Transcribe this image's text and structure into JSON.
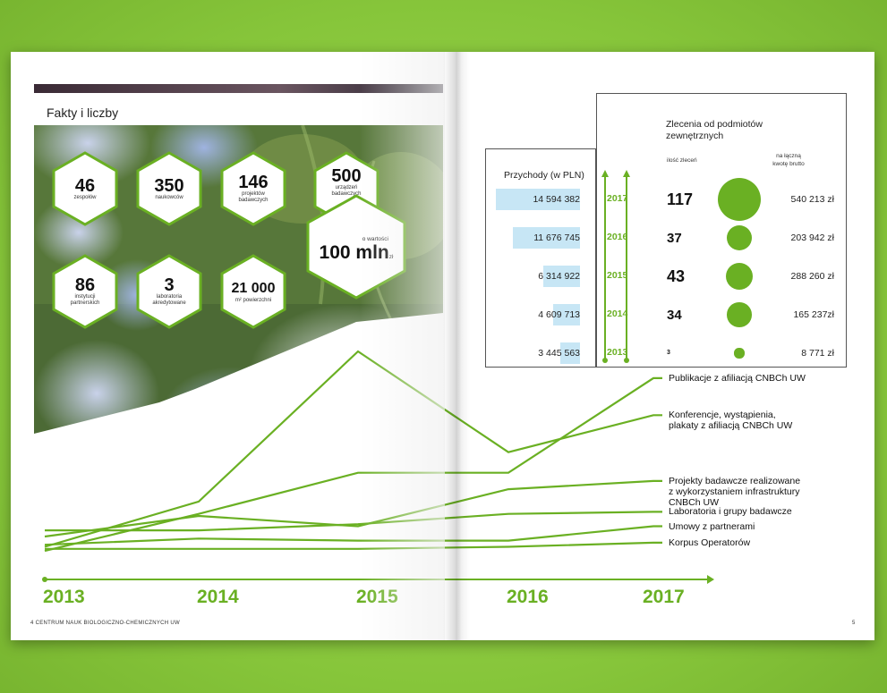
{
  "section_title": "Fakty i liczby",
  "stats": [
    {
      "value": "46",
      "label": "zespołów"
    },
    {
      "value": "350",
      "label": "naukowców"
    },
    {
      "value": "146",
      "label": "projektów badawczych"
    },
    {
      "value": "500",
      "label": "urządzeń badawczych"
    },
    {
      "value": "86",
      "label": "instytucji partnerskich"
    },
    {
      "value": "3",
      "label": "laboratoria akredytowane"
    },
    {
      "value": "21 000",
      "label": "m² powierzchni"
    }
  ],
  "equipment_value": {
    "prefix": "o wartości",
    "value": "100 mln",
    "unit": "zł"
  },
  "revenue": {
    "title": "Przychody (w PLN)",
    "rows": [
      {
        "year": "2017",
        "amount": "14 594 382",
        "value": 14594382
      },
      {
        "year": "2016",
        "amount": "11 676 745",
        "value": 11676745
      },
      {
        "year": "2015",
        "amount": "6 314 922",
        "value": 6314922
      },
      {
        "year": "2014",
        "amount": "4 609 713",
        "value": 4609713
      },
      {
        "year": "2013",
        "amount": "3 445 563",
        "value": 3445563
      }
    ]
  },
  "orders": {
    "title": "Zlecenia od podmiotów zewnętrznych",
    "count_header": "ilość zleceń",
    "sum_header": "na łączną kwotę brutto",
    "rows": [
      {
        "count": "117",
        "count_value": 117,
        "sum": "540 213 zł"
      },
      {
        "count": "37",
        "count_value": 37,
        "sum": "203 942 zł"
      },
      {
        "count": "43",
        "count_value": 43,
        "sum": "288 260 zł"
      },
      {
        "count": "34",
        "count_value": 34,
        "sum": "165 237zł"
      },
      {
        "count": "3",
        "count_value": 3,
        "sum": "8 771 zł"
      }
    ]
  },
  "chart_data": {
    "type": "line",
    "x": [
      "2013",
      "2014",
      "2015",
      "2016",
      "2017"
    ],
    "series": [
      {
        "name": "Konferencje, wystąpienia, plakaty z afiliacją CNBCh UW",
        "values": [
          5,
          27,
          100,
          51,
          69
        ]
      },
      {
        "name": "Publikacje z afiliacją CNBCh UW",
        "values": [
          3,
          21,
          41,
          41,
          87
        ]
      },
      {
        "name": "Projekty badawcze realizowane z wykorzystaniem infrastruktury CNBCh UW",
        "values": [
          10,
          20,
          15,
          33,
          37
        ]
      },
      {
        "name": "Laboratoria i grupy badawcze",
        "values": [
          13,
          13,
          16,
          21,
          22
        ]
      },
      {
        "name": "Umowy z partnerami",
        "values": [
          6,
          9,
          8,
          8,
          15
        ]
      },
      {
        "name": "Korpus Operatorów",
        "values": [
          4,
          4,
          4,
          5,
          7
        ]
      }
    ]
  },
  "colors": {
    "accent": "#6ab023",
    "bar": "#c7e6f5",
    "frame": "#555555"
  },
  "footer": {
    "left_page": "4",
    "left_text": "CENTRUM NAUK BIOLOGICZNO-CHEMICZNYCH UW",
    "right_page": "5"
  }
}
